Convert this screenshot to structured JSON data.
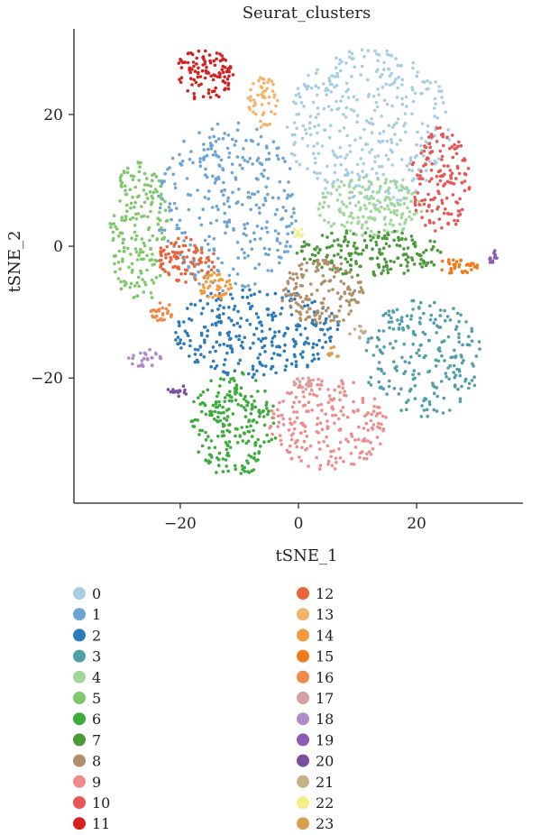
{
  "chart_data": {
    "type": "scatter",
    "title": "Seurat_clusters",
    "xlabel": "tSNE_1",
    "ylabel": "tSNE_2",
    "xlim": [
      -38,
      38
    ],
    "ylim": [
      -39,
      33
    ],
    "xticks": [
      -20,
      0,
      20
    ],
    "yticks": [
      -20,
      0,
      20
    ],
    "xtick_labels": [
      "−20",
      "0",
      "20"
    ],
    "ytick_labels": [
      "−20",
      "0",
      "20"
    ],
    "grid": false,
    "legend": {
      "placement": "bottom",
      "columns": 2
    },
    "series": [
      {
        "name": "0",
        "color": "#a6cee3",
        "cx": 12,
        "cy": 18,
        "rx": 14,
        "ry": 12,
        "n": 360
      },
      {
        "name": "1",
        "color": "#6ca4d4",
        "cx": -12,
        "cy": 6,
        "rx": 12,
        "ry": 13,
        "n": 300
      },
      {
        "name": "2",
        "color": "#2b7bba",
        "cx": -7,
        "cy": -13,
        "rx": 14,
        "ry": 7,
        "n": 280
      },
      {
        "name": "3",
        "color": "#4f9ea8",
        "cx": 21,
        "cy": -17,
        "rx": 10,
        "ry": 9,
        "n": 220
      },
      {
        "name": "4",
        "color": "#9fd89a",
        "cx": 12,
        "cy": 6,
        "rx": 9,
        "ry": 4.5,
        "n": 170
      },
      {
        "name": "5",
        "color": "#7ec86a",
        "cx": -27,
        "cy": 2,
        "rx": 5,
        "ry": 11,
        "n": 190
      },
      {
        "name": "6",
        "color": "#3cac3c",
        "cx": -11,
        "cy": -27,
        "rx": 7.5,
        "ry": 8,
        "n": 220
      },
      {
        "name": "7",
        "color": "#4a9a3a",
        "cx": 12,
        "cy": -1,
        "rx": 13,
        "ry": 3.5,
        "n": 180
      },
      {
        "name": "8",
        "color": "#b0906a",
        "cx": 4,
        "cy": -7,
        "rx": 7,
        "ry": 5,
        "n": 150
      },
      {
        "name": "9",
        "color": "#ee8c8c",
        "cx": 5,
        "cy": -27,
        "rx": 10,
        "ry": 7,
        "n": 220
      },
      {
        "name": "10",
        "color": "#e85555",
        "cx": 24,
        "cy": 10,
        "rx": 5,
        "ry": 8,
        "n": 140
      },
      {
        "name": "11",
        "color": "#d62020",
        "cx": -16,
        "cy": 26,
        "rx": 5,
        "ry": 4,
        "n": 110
      },
      {
        "name": "12",
        "color": "#e8653a",
        "cx": -19,
        "cy": -2,
        "rx": 5,
        "ry": 3.5,
        "n": 90
      },
      {
        "name": "13",
        "color": "#f4b26a",
        "cx": -6,
        "cy": 22,
        "rx": 2.5,
        "ry": 4,
        "n": 50
      },
      {
        "name": "14",
        "color": "#f49a3c",
        "cx": -14,
        "cy": -6,
        "rx": 3,
        "ry": 2,
        "n": 40
      },
      {
        "name": "15",
        "color": "#f07b1a",
        "cx": 27,
        "cy": -3,
        "rx": 3.5,
        "ry": 1.2,
        "n": 35
      },
      {
        "name": "16",
        "color": "#ef8a4a",
        "cx": -23,
        "cy": -10,
        "rx": 2,
        "ry": 1.6,
        "n": 30
      },
      {
        "name": "17",
        "color": "#d8a0a0",
        "cx": 1,
        "cy": -21,
        "rx": 2,
        "ry": 1.2,
        "n": 20
      },
      {
        "name": "18",
        "color": "#b08ac8",
        "cx": -26,
        "cy": -17,
        "rx": 3,
        "ry": 1.4,
        "n": 25
      },
      {
        "name": "19",
        "color": "#8a5ab4",
        "cx": 33,
        "cy": -2,
        "rx": 0.7,
        "ry": 1.5,
        "n": 12
      },
      {
        "name": "20",
        "color": "#7a4fa0",
        "cx": -20,
        "cy": -22,
        "rx": 2.2,
        "ry": 0.8,
        "n": 14
      },
      {
        "name": "21",
        "color": "#c4b08a",
        "cx": 10,
        "cy": -13,
        "rx": 1.4,
        "ry": 1,
        "n": 10
      },
      {
        "name": "22",
        "color": "#f2ee88",
        "cx": 0,
        "cy": 2,
        "rx": 1,
        "ry": 0.7,
        "n": 8
      },
      {
        "name": "23",
        "color": "#d8a050",
        "cx": 6,
        "cy": -16,
        "rx": 1.3,
        "ry": 1,
        "n": 10
      }
    ]
  }
}
